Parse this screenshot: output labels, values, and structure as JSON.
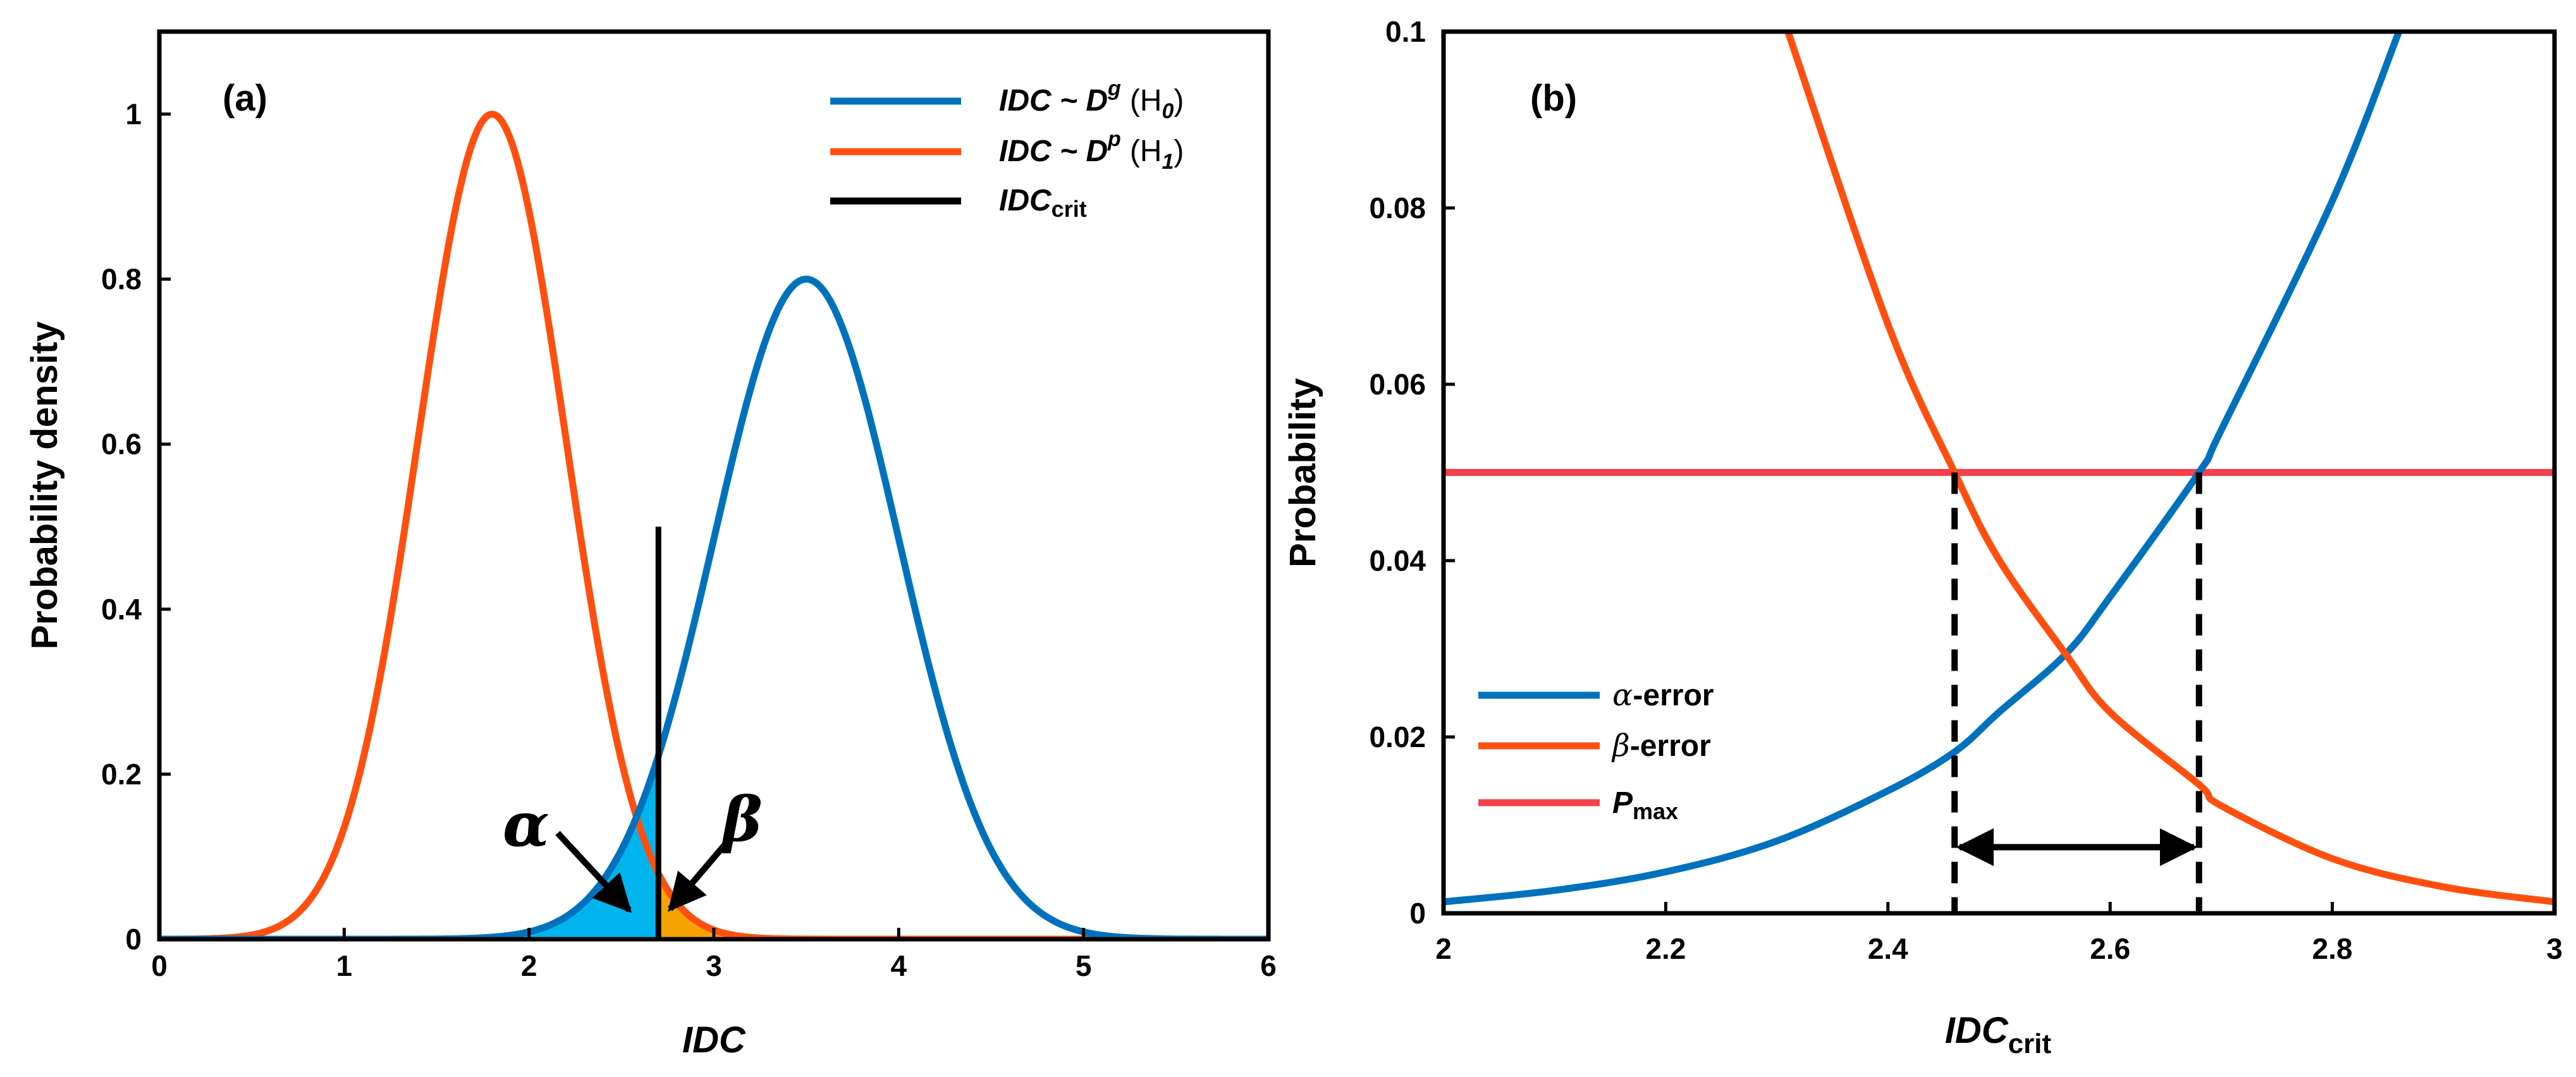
{
  "chart_data": [
    {
      "panel_label": "(a)",
      "type": "line",
      "xlabel": "IDC",
      "ylabel": "Probability density",
      "xlim": [
        0,
        6
      ],
      "ylim": [
        0,
        1.1
      ],
      "xticks": [
        "0",
        "1",
        "2",
        "3",
        "4",
        "5",
        "6"
      ],
      "yticks": [
        "0",
        "0.2",
        "0.4",
        "0.6",
        "0.8",
        "1"
      ],
      "series": [
        {
          "name": "IDC ~ D^g (H0)",
          "legend_main": "IDC ~ D",
          "legend_sup": "g",
          "legend_paren": "(H",
          "legend_sub": "0",
          "legend_close": ")",
          "color": "#0072BD",
          "distribution": "gaussian",
          "mean": 3.5,
          "sd": 0.5,
          "peak": 0.8
        },
        {
          "name": "IDC ~ D^p (H1)",
          "legend_main": "IDC ~ D",
          "legend_sup": "p",
          "legend_paren": "(H",
          "legend_sub": "1",
          "legend_close": ")",
          "color": "#FF4F0F",
          "distribution": "gaussian",
          "mean": 1.8,
          "sd": 0.4,
          "peak": 1.0
        }
      ],
      "critical_line": {
        "name": "IDCcrit",
        "legend_main": "IDC",
        "legend_sub": "crit",
        "x": 2.7,
        "y_top": 0.5,
        "color": "#000000"
      },
      "shaded_regions": [
        {
          "name": "alpha-region",
          "color": "#00B5EE",
          "x_from": 0,
          "x_to": 2.7,
          "under": "IDC ~ D^g (H0)"
        },
        {
          "name": "beta-region",
          "color": "#F5A300",
          "x_from": 2.7,
          "x_to": 6,
          "under": "IDC ~ D^p (H1)"
        }
      ],
      "annotations": [
        {
          "text": "α",
          "label": "alpha",
          "arrow_to": [
            2.63,
            0.035
          ]
        },
        {
          "text": "β",
          "label": "beta",
          "arrow_to": [
            2.76,
            0.035
          ]
        }
      ],
      "legend_position": "top-right"
    },
    {
      "panel_label": "(b)",
      "type": "line",
      "xlabel_main": "IDC",
      "xlabel_sub": "crit",
      "ylabel": "Probability",
      "xlim": [
        2,
        3
      ],
      "ylim": [
        0,
        0.1
      ],
      "xticks": [
        "2",
        "2.2",
        "2.4",
        "2.6",
        "2.8",
        "3"
      ],
      "yticks": [
        "0",
        "0.02",
        "0.04",
        "0.06",
        "0.08",
        "0.1"
      ],
      "series": [
        {
          "name": "α-error",
          "greek": "α",
          "suffix": "-error",
          "color": "#0072BD",
          "points": [
            [
              2.0,
              0.0013
            ],
            [
              2.1,
              0.0026
            ],
            [
              2.2,
              0.0047
            ],
            [
              2.3,
              0.0082
            ],
            [
              2.4,
              0.0139
            ],
            [
              2.46,
              0.0183
            ],
            [
              2.5,
              0.0228
            ],
            [
              2.56,
              0.0294
            ],
            [
              2.6,
              0.0359
            ],
            [
              2.68,
              0.05
            ],
            [
              2.7,
              0.0548
            ],
            [
              2.8,
              0.0808
            ],
            [
              2.86,
              0.1
            ]
          ]
        },
        {
          "name": "β-error",
          "greek": "β",
          "suffix": "-error",
          "color": "#FF4F0F",
          "points": [
            [
              2.31,
              0.1
            ],
            [
              2.4,
              0.0668
            ],
            [
              2.46,
              0.05
            ],
            [
              2.5,
              0.0401
            ],
            [
              2.56,
              0.0294
            ],
            [
              2.6,
              0.0228
            ],
            [
              2.68,
              0.0146
            ],
            [
              2.7,
              0.0122
            ],
            [
              2.8,
              0.0062
            ],
            [
              2.9,
              0.003
            ],
            [
              3.0,
              0.0013
            ]
          ]
        },
        {
          "name": "Pmax",
          "legend_main": "P",
          "legend_sub": "max",
          "color": "#F4404A",
          "constant": 0.05
        }
      ],
      "vertical_markers": [
        2.46,
        2.68
      ],
      "double_arrow": {
        "from": 2.46,
        "to": 2.68,
        "y": 0.0075
      },
      "legend_position": "lower-left"
    }
  ]
}
